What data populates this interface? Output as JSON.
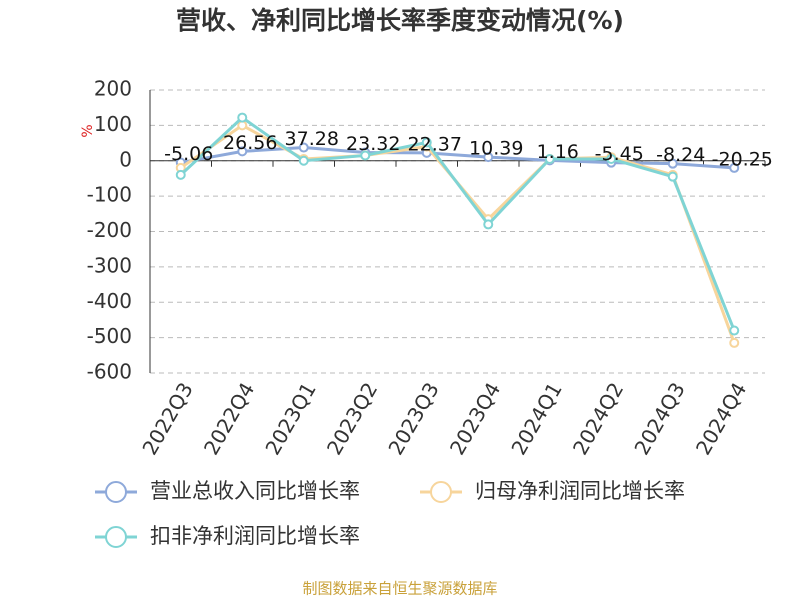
{
  "chart_data": {
    "type": "line",
    "title": "营收、净利同比增长率季度变动情况(%)",
    "y_label": "%",
    "source": "制图数据来自恒生聚源数据库",
    "categories": [
      "2022Q3",
      "2022Q4",
      "2023Q1",
      "2023Q2",
      "2023Q3",
      "2023Q4",
      "2024Q1",
      "2024Q2",
      "2024Q3",
      "2024Q4"
    ],
    "series": [
      {
        "name": "营业总收入同比增长率",
        "color": "#8ea9da",
        "values": [
          -5.06,
          26.56,
          37.28,
          23.32,
          22.37,
          10.39,
          1.16,
          -5.45,
          -8.24,
          -20.25
        ],
        "labels": true
      },
      {
        "name": "归母净利润同比增长率",
        "color": "#f7d59c",
        "values": [
          -20,
          100,
          5,
          15,
          40,
          -165,
          5,
          10,
          -40,
          -515
        ]
      },
      {
        "name": "扣非净利润同比增长率",
        "color": "#7fd4d4",
        "values": [
          -40,
          122,
          0,
          15,
          52,
          -180,
          5,
          5,
          -45,
          -480
        ]
      }
    ],
    "ylim": [
      -600,
      200
    ],
    "yticks": [
      -600,
      -500,
      -400,
      -300,
      -200,
      -100,
      0,
      100,
      200
    ],
    "grid": true
  }
}
